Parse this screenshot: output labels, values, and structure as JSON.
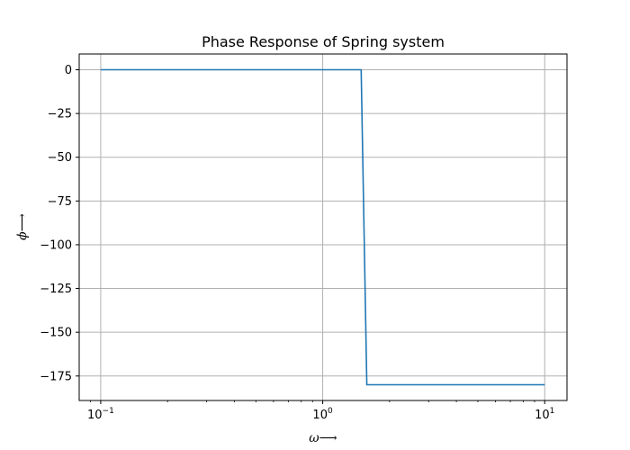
{
  "chart_data": {
    "type": "line",
    "title": "Phase Response of Spring system",
    "xlabel": "ω⟶",
    "ylabel": "ϕ⟶",
    "x_scale": "log",
    "xlim": [
      0.08,
      12.6
    ],
    "ylim": [
      -189,
      9
    ],
    "grid": true,
    "x_ticks": [
      {
        "value": 0.1,
        "label": "10",
        "exp": "−1"
      },
      {
        "value": 1,
        "label": "10",
        "exp": "0"
      },
      {
        "value": 10,
        "label": "10",
        "exp": "1"
      }
    ],
    "y_ticks": [
      {
        "value": 0,
        "label": "0"
      },
      {
        "value": -25,
        "label": "−25"
      },
      {
        "value": -50,
        "label": "−50"
      },
      {
        "value": -75,
        "label": "−75"
      },
      {
        "value": -100,
        "label": "−100"
      },
      {
        "value": -125,
        "label": "−125"
      },
      {
        "value": -150,
        "label": "−150"
      },
      {
        "value": -175,
        "label": "−175"
      }
    ],
    "series": [
      {
        "color": "#1f77b4",
        "x": [
          0.1,
          0.5,
          1.0,
          1.49,
          1.58,
          3.0,
          6.0,
          10.0
        ],
        "y": [
          0,
          0,
          0,
          0,
          -180,
          -180,
          -180,
          -180
        ]
      }
    ]
  }
}
